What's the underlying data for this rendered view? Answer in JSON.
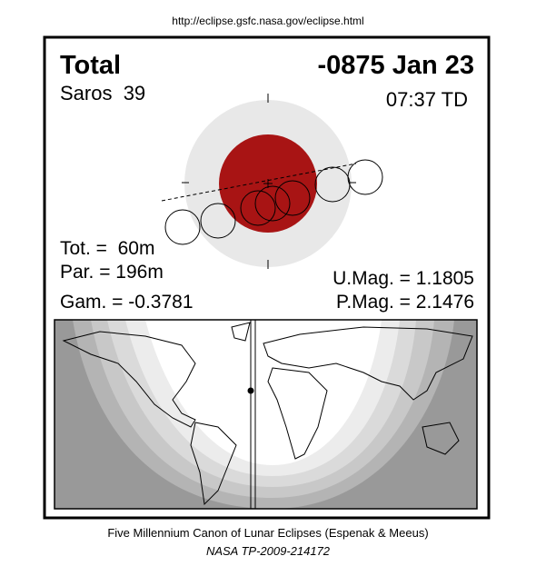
{
  "header": {
    "url": "http://eclipse.gsfc.nasa.gov/eclipse.html"
  },
  "eclipse": {
    "type": "Total",
    "date": "-0875 Jan 23",
    "saros": "Saros  39",
    "time": "07:37 TD",
    "totality": "Tot. =  60m",
    "partial": "Par. = 196m",
    "gamma": "Gam. = -0.3781",
    "umbral_magnitude": "U.Mag. = 1.1805",
    "penumbral_magnitude": "P.Mag. = 2.1476"
  },
  "footer": {
    "canon": "Five Millennium Canon of Lunar Eclipses (Espenak & Meeus)",
    "reference": "NASA TP-2009-214172"
  }
}
